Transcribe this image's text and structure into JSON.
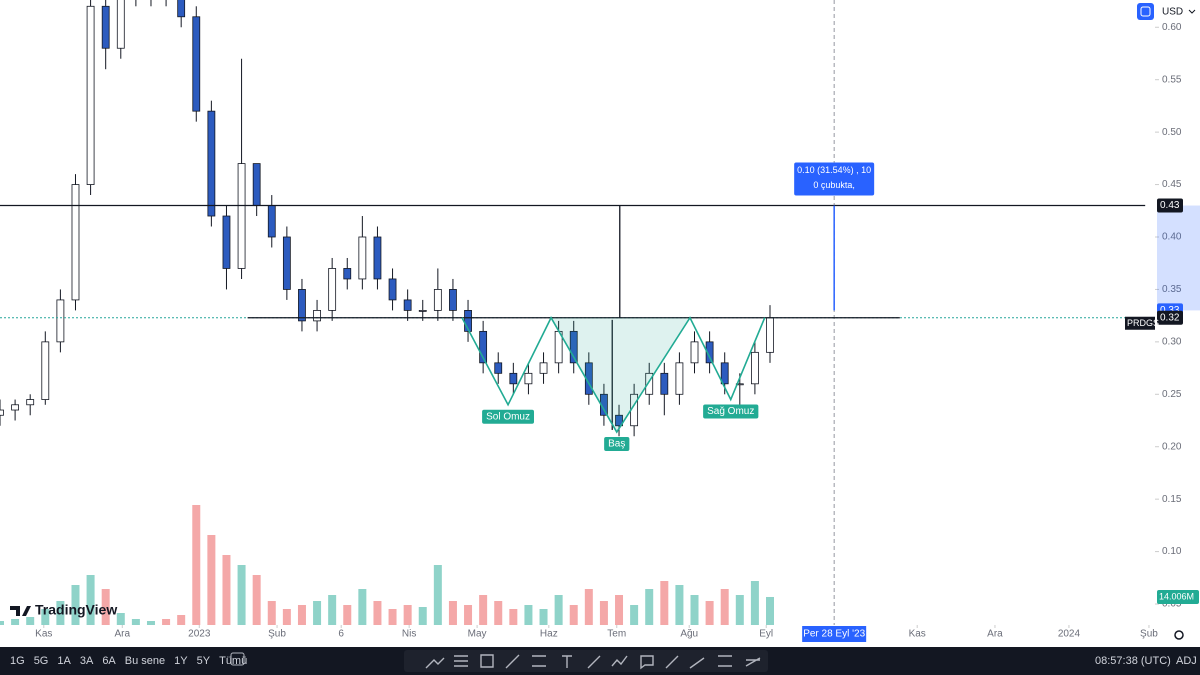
{
  "chart_data": {
    "type": "candlestick",
    "symbol": "PRDGS",
    "currency": "USD",
    "brand": "TradingView",
    "x": [
      0,
      2,
      4,
      6,
      8,
      10,
      12,
      14,
      16,
      18,
      20,
      22,
      24,
      26,
      28,
      30,
      32,
      34,
      36,
      38,
      40,
      42,
      44,
      46,
      48,
      50,
      52,
      54,
      56,
      58,
      60,
      62,
      64,
      66,
      68,
      70,
      72,
      74,
      76,
      78,
      80,
      82,
      84,
      86,
      88,
      90,
      92,
      94,
      96,
      98,
      100,
      102
    ],
    "open": [
      0.23,
      0.235,
      0.24,
      0.245,
      0.3,
      0.34,
      0.45,
      0.62,
      0.58,
      0.63,
      0.63,
      0.64,
      0.63,
      0.61,
      0.52,
      0.42,
      0.37,
      0.47,
      0.43,
      0.4,
      0.35,
      0.32,
      0.33,
      0.37,
      0.36,
      0.4,
      0.36,
      0.34,
      0.33,
      0.33,
      0.35,
      0.33,
      0.31,
      0.28,
      0.27,
      0.26,
      0.27,
      0.28,
      0.31,
      0.28,
      0.25,
      0.23,
      0.22,
      0.25,
      0.27,
      0.25,
      0.28,
      0.3,
      0.28,
      0.26,
      0.26,
      0.29
    ],
    "high": [
      0.245,
      0.245,
      0.25,
      0.31,
      0.35,
      0.46,
      0.63,
      0.64,
      0.64,
      0.65,
      0.65,
      0.65,
      0.64,
      0.62,
      0.53,
      0.43,
      0.57,
      0.47,
      0.44,
      0.41,
      0.36,
      0.34,
      0.38,
      0.38,
      0.42,
      0.41,
      0.37,
      0.35,
      0.34,
      0.37,
      0.36,
      0.34,
      0.32,
      0.29,
      0.28,
      0.28,
      0.29,
      0.32,
      0.32,
      0.29,
      0.26,
      0.24,
      0.26,
      0.28,
      0.28,
      0.29,
      0.31,
      0.31,
      0.29,
      0.27,
      0.3,
      0.335
    ],
    "low": [
      0.22,
      0.225,
      0.23,
      0.24,
      0.29,
      0.33,
      0.44,
      0.56,
      0.57,
      0.62,
      0.62,
      0.62,
      0.6,
      0.51,
      0.41,
      0.35,
      0.36,
      0.42,
      0.39,
      0.34,
      0.31,
      0.31,
      0.32,
      0.35,
      0.35,
      0.35,
      0.33,
      0.32,
      0.32,
      0.32,
      0.32,
      0.3,
      0.27,
      0.26,
      0.25,
      0.25,
      0.26,
      0.27,
      0.27,
      0.24,
      0.22,
      0.21,
      0.21,
      0.24,
      0.23,
      0.24,
      0.27,
      0.27,
      0.25,
      0.24,
      0.25,
      0.28
    ],
    "close": [
      0.235,
      0.24,
      0.245,
      0.3,
      0.34,
      0.45,
      0.62,
      0.58,
      0.63,
      0.63,
      0.64,
      0.63,
      0.61,
      0.52,
      0.42,
      0.37,
      0.47,
      0.43,
      0.4,
      0.35,
      0.32,
      0.33,
      0.37,
      0.36,
      0.4,
      0.36,
      0.34,
      0.33,
      0.33,
      0.35,
      0.33,
      0.31,
      0.28,
      0.27,
      0.26,
      0.27,
      0.28,
      0.31,
      0.28,
      0.25,
      0.23,
      0.22,
      0.25,
      0.27,
      0.25,
      0.28,
      0.3,
      0.28,
      0.26,
      0.26,
      0.29,
      0.323
    ],
    "up_color": "#ffffff",
    "down_color": "#2c5bbf",
    "volume": {
      "values": [
        2,
        3,
        4,
        8,
        12,
        20,
        25,
        18,
        6,
        3,
        2,
        3,
        5,
        60,
        45,
        35,
        30,
        25,
        12,
        8,
        10,
        12,
        15,
        10,
        18,
        12,
        8,
        10,
        9,
        30,
        12,
        10,
        15,
        12,
        8,
        10,
        8,
        15,
        10,
        18,
        12,
        15,
        10,
        18,
        22,
        20,
        15,
        12,
        18,
        15,
        22,
        14.006
      ],
      "ylim": [
        0,
        80
      ],
      "up_color": "#8fd3c9",
      "down_color": "#f4a8a8",
      "last_label": "14.006M"
    },
    "xlim": [
      0,
      153
    ],
    "ylim": [
      0.03,
      0.626
    ],
    "yticks": [
      {
        "value": 0.6,
        "label": "0.60"
      },
      0.55,
      {
        "value": 0.5,
        "label": "0.50"
      },
      0.45,
      {
        "value": 0.4,
        "label": "0.40"
      },
      0.35,
      {
        "value": 0.3,
        "label": "0.30"
      },
      0.25,
      {
        "value": 0.2,
        "label": "0.20"
      },
      0.15,
      {
        "value": 0.1,
        "label": "0.10"
      },
      0.05
    ],
    "xticks": [
      {
        "value": 5.8,
        "label": "Kas"
      },
      {
        "value": 16.2,
        "label": "Ara"
      },
      {
        "value": 26.4,
        "label": "2023"
      },
      {
        "value": 36.7,
        "label": "Şub"
      },
      {
        "value": 45.2,
        "label": "6"
      },
      {
        "value": 54.2,
        "label": "Nis"
      },
      {
        "value": 63.2,
        "label": "May"
      },
      {
        "value": 72.7,
        "label": "Haz"
      },
      {
        "value": 81.7,
        "label": "Tem"
      },
      {
        "value": 91.3,
        "label": "Ağu"
      },
      {
        "value": 101.5,
        "label": "Eyl"
      },
      {
        "value": 121.5,
        "label": "Kas"
      },
      {
        "value": 131.8,
        "label": "Ara"
      },
      {
        "value": 141.6,
        "label": "2024"
      },
      {
        "value": 152.2,
        "label": "Şub"
      }
    ],
    "crosshair": {
      "x": 110.5,
      "label": "Per 28 Eyl '23"
    },
    "last_price_line": {
      "value": 0.323,
      "color": "#26a69a"
    },
    "lines": [
      {
        "x": [
          0,
          151.7
        ],
        "y": [
          0.43,
          0.43
        ]
      },
      {
        "x": [
          32.8,
          119.2
        ],
        "y": [
          0.323,
          0.323
        ]
      },
      {
        "x": [
          82.1,
          82.1
        ],
        "y": [
          0.43,
          0.323
        ]
      },
      {
        "x": [
          81.1,
          81.1
        ],
        "y": [
          0.321,
          0.216
        ]
      }
    ],
    "price_labels": [
      {
        "value": 0.43,
        "label": "0.43",
        "color": "#131722"
      },
      {
        "value": 0.33,
        "label": "0.33",
        "color": "#2962ff"
      },
      {
        "value": 0.323,
        "label": "0.32",
        "color": "#131722"
      }
    ],
    "pattern": {
      "x": [
        61.2,
        67.3,
        73,
        81.7,
        91.4,
        96.8,
        101.3
      ],
      "y": [
        0.323,
        0.24,
        0.323,
        0.214,
        0.323,
        0.245,
        0.323
      ],
      "color": "#22ab94",
      "labels": [
        {
          "x": 67.3,
          "y": 0.24,
          "text": "Sol Omuz"
        },
        {
          "x": 81.7,
          "y": 0.214,
          "text": "Baş"
        },
        {
          "x": 96.8,
          "y": 0.245,
          "text": "Sağ Omuz"
        }
      ]
    },
    "measure": {
      "x": 110.5,
      "y": [
        0.33,
        0.43
      ],
      "text": [
        "0.10 (31.54%) , 10",
        "0 çubukta,"
      ],
      "color": "#2962ff"
    }
  },
  "toolbar": {
    "ranges": [
      "1G",
      "5G",
      "1A",
      "3A",
      "6A",
      "Bu sene",
      "1Y",
      "5Y",
      "Tümü"
    ],
    "time": "08:57:38 (UTC)",
    "adj": "ADJ"
  }
}
